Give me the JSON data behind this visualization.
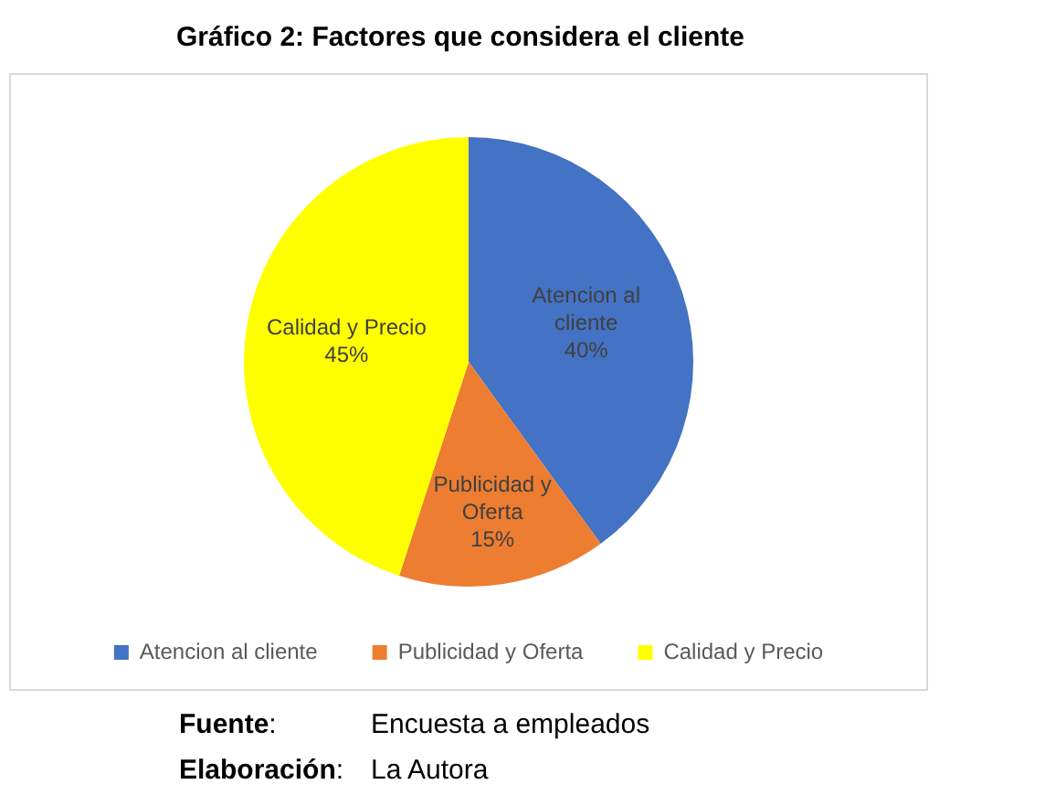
{
  "chart_data": {
    "type": "pie",
    "title": "Gráfico 2: Factores que considera el cliente",
    "categories": [
      "Atencion al cliente",
      "Publicidad y Oferta",
      "Calidad y Precio"
    ],
    "values": [
      40,
      15,
      45
    ],
    "colors": [
      "#4472c4",
      "#ed7d31",
      "#ffff00"
    ],
    "value_labels": [
      "40%",
      "15%",
      "45%"
    ],
    "legend": "bottom",
    "annotations": [
      "Fuente: Encuesta a empleados",
      "Elaboración: La Autora"
    ]
  }
}
